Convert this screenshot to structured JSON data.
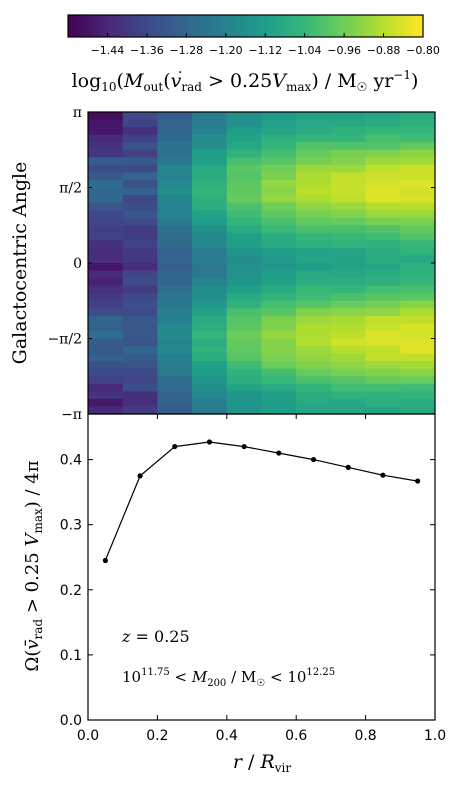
{
  "chart_data": [
    {
      "type": "colorbar",
      "colormap": "viridis",
      "range": [
        -1.52,
        -0.8
      ],
      "tick_labels": [
        "−1.44",
        "−1.36",
        "−1.28",
        "−1.20",
        "−1.12",
        "−1.04",
        "−0.96",
        "−0.88",
        "−0.80"
      ],
      "ticks": [
        -1.44,
        -1.36,
        -1.28,
        -1.2,
        -1.12,
        -1.04,
        -0.96,
        -0.88,
        -0.8
      ],
      "label": "log10(Ṁout(vrad > 0.25Vmax) / M☉ yr−1)"
    },
    {
      "type": "heatmap",
      "ylabel": "Galactocentric Angle",
      "ytick_labels": [
        "π",
        "π/2",
        "0",
        "−π/2",
        "−π"
      ],
      "x_bins": [
        0.05,
        0.15,
        0.25,
        0.35,
        0.45,
        0.55,
        0.65,
        0.75,
        0.85,
        0.95
      ],
      "col_low": [
        -1.46,
        -1.4,
        -1.3,
        -1.22,
        -1.16,
        -1.13,
        -1.11,
        -1.1,
        -1.09,
        -1.08
      ],
      "col_high": [
        -1.3,
        -1.32,
        -1.18,
        -1.06,
        -0.97,
        -0.92,
        -0.88,
        -0.86,
        -0.84,
        -0.83
      ]
    },
    {
      "type": "line",
      "x": [
        0.05,
        0.15,
        0.25,
        0.35,
        0.45,
        0.55,
        0.65,
        0.75,
        0.85,
        0.95
      ],
      "y": [
        0.245,
        0.375,
        0.42,
        0.427,
        0.42,
        0.41,
        0.4,
        0.388,
        0.376,
        0.367
      ],
      "xlim": [
        0.0,
        1.0
      ],
      "ylim": [
        0.0,
        0.47
      ],
      "xtick_labels": [
        "0.0",
        "0.2",
        "0.4",
        "0.6",
        "0.8",
        "1.0"
      ],
      "ytick_labels": [
        "0.0",
        "0.1",
        "0.2",
        "0.3",
        "0.4"
      ],
      "xlabel": "r / Rvir",
      "ylabel": "Ω(v̄rad > 0.25 Vmax) / 4π",
      "annotations": [
        "z = 0.25",
        "10^11.75 < M200 / M☉ < 10^12.25"
      ]
    }
  ]
}
